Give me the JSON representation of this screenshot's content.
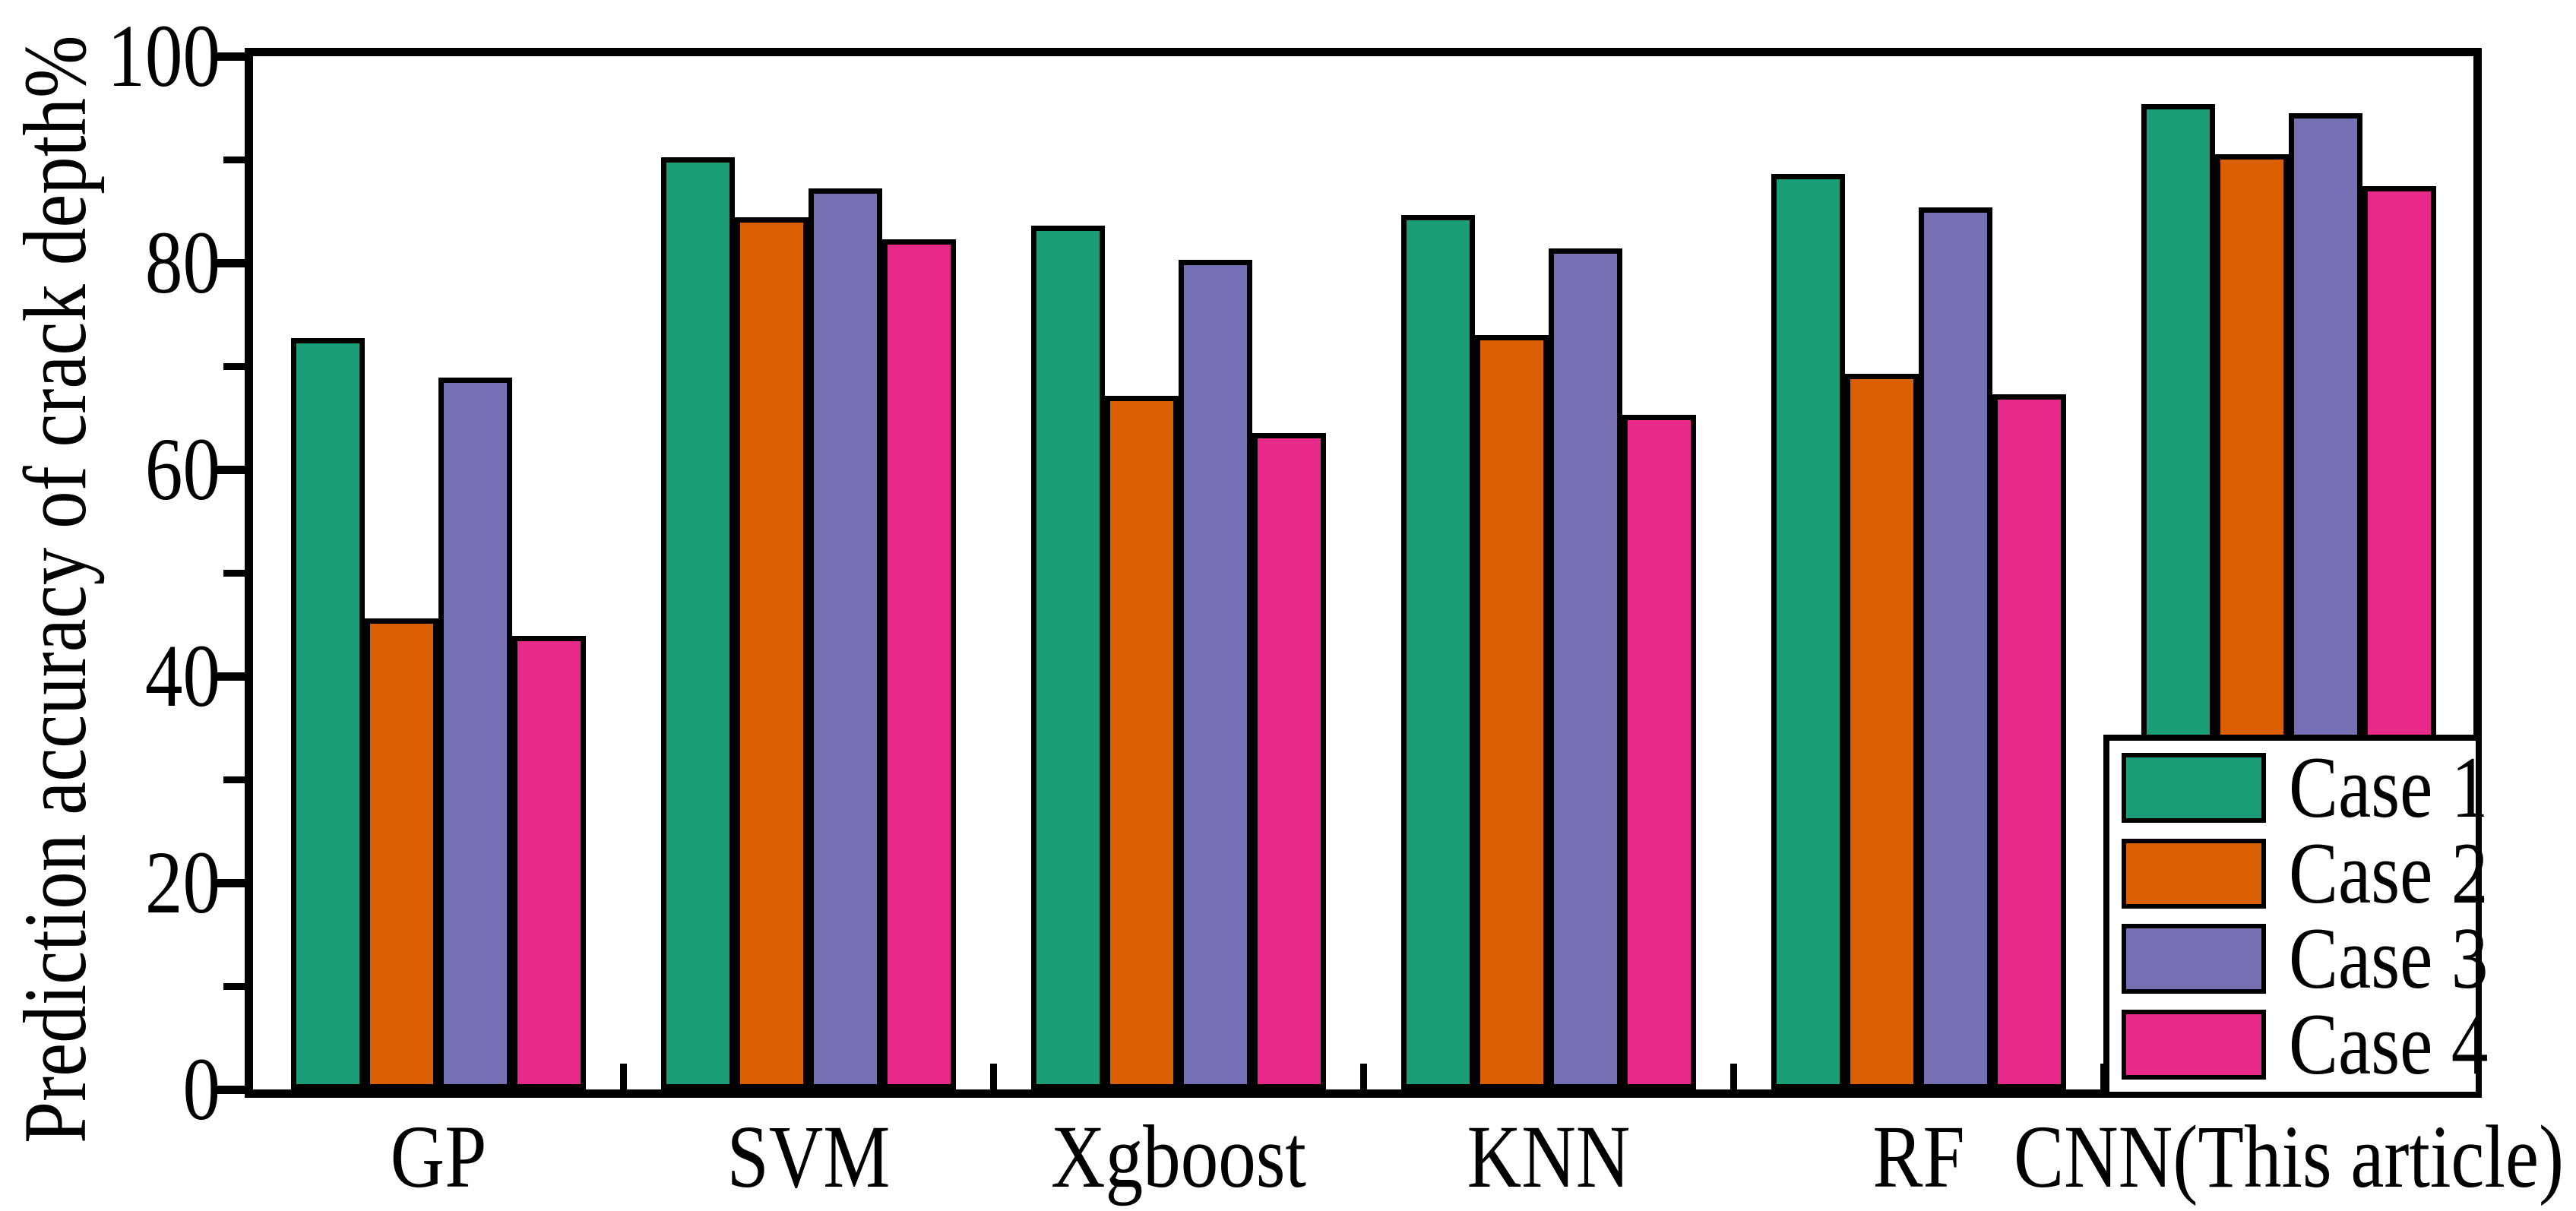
{
  "chart_data": {
    "type": "bar",
    "title": "",
    "xlabel": "",
    "ylabel": "Prediction accuracy of crack depth%",
    "categories": [
      "GP",
      "SVM",
      "Xgboost",
      "KNN",
      "RF",
      "CNN(This article)"
    ],
    "series": [
      {
        "name": "Case 1",
        "color": "#1B9E77",
        "values": [
          72.7,
          90.2,
          83.6,
          84.6,
          88.6,
          95.4
        ]
      },
      {
        "name": "Case 2",
        "color": "#D95F02",
        "values": [
          45.6,
          84.4,
          67.1,
          73.0,
          69.3,
          90.5
        ]
      },
      {
        "name": "Case 3",
        "color": "#7570B3",
        "values": [
          68.9,
          87.2,
          80.3,
          81.4,
          85.4,
          94.5
        ]
      },
      {
        "name": "Case 4",
        "color": "#E7298A",
        "values": [
          43.9,
          82.3,
          63.5,
          65.3,
          67.3,
          87.4
        ]
      }
    ],
    "ylim": [
      0,
      100
    ],
    "yticks_major": [
      0,
      20,
      40,
      60,
      80,
      100
    ],
    "yticks_minor": [
      10,
      30,
      50,
      70,
      90
    ],
    "grid": false,
    "bar_outline_color": "#000000",
    "axis_color": "#000000",
    "background_color": "#ffffff",
    "legend": {
      "position": "bottom-right",
      "labels": [
        "Case 1",
        "Case 2",
        "Case 3",
        "Case 4"
      ]
    }
  }
}
